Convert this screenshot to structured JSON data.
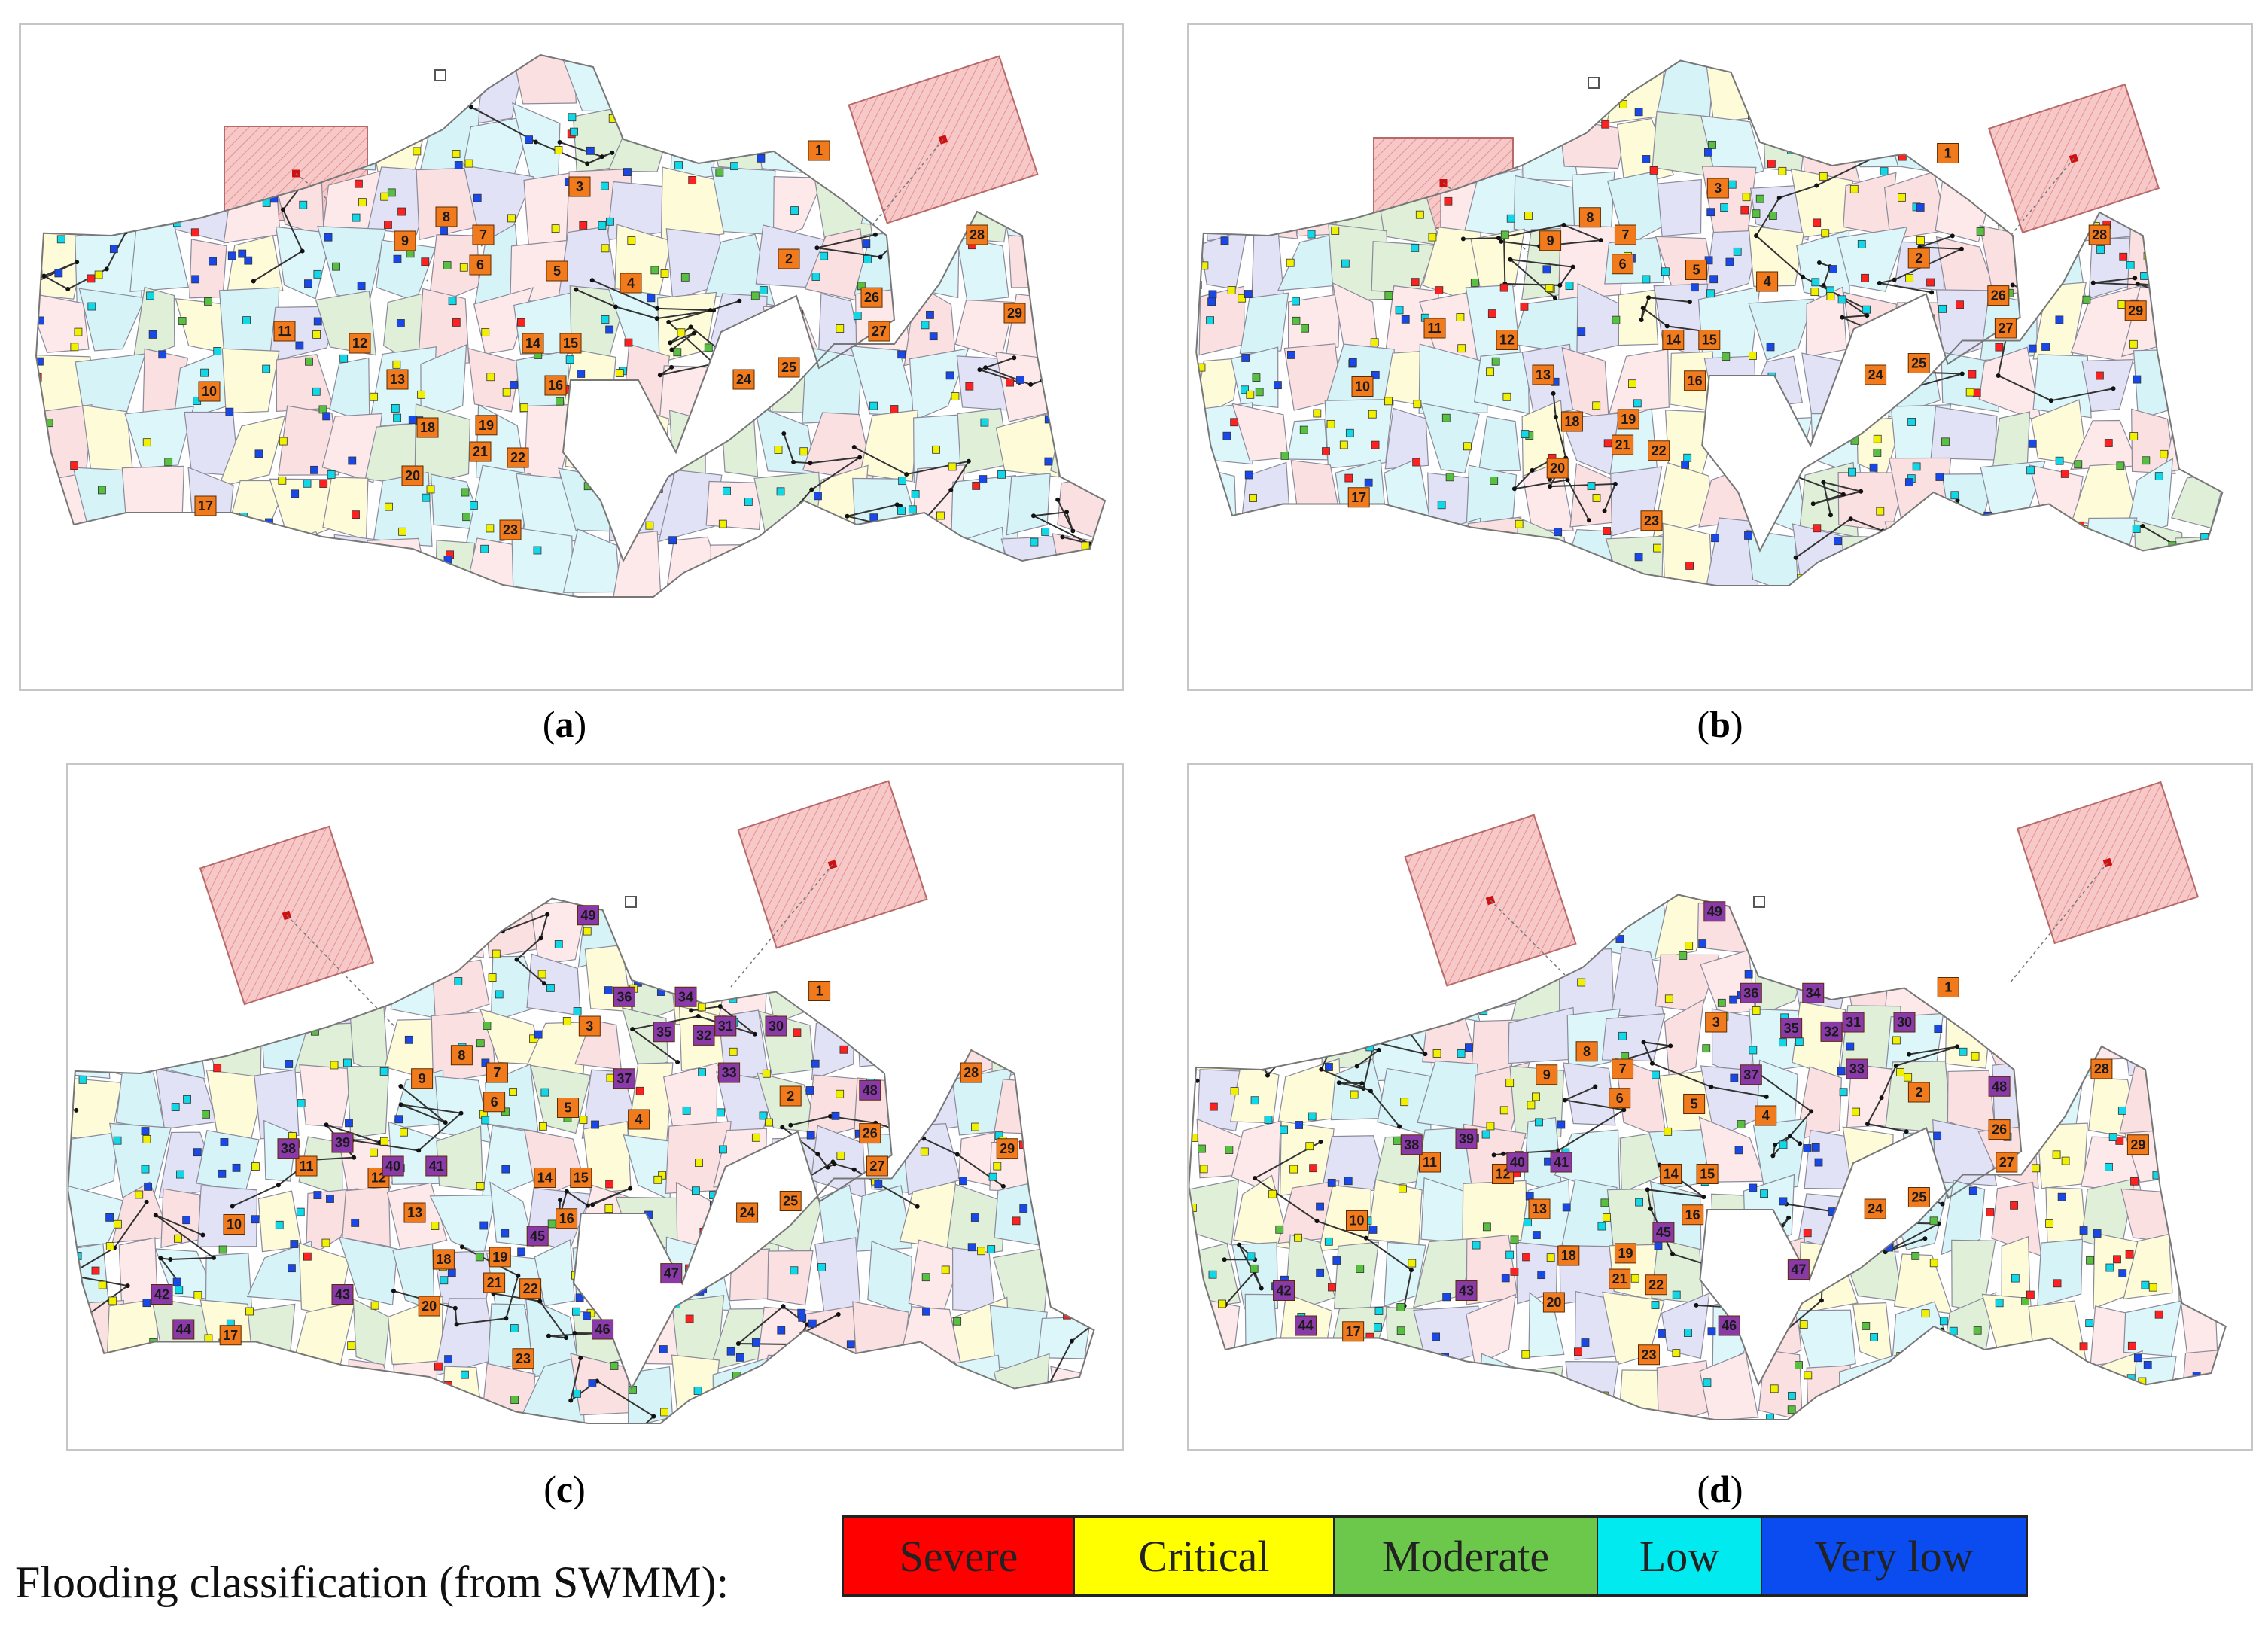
{
  "figure": {
    "panels": [
      {
        "id": "a",
        "caption_open": "(",
        "caption_letter": "a",
        "caption_close": ")",
        "junction_labels": [
          "1",
          "2",
          "3",
          "4",
          "5",
          "6",
          "7",
          "8",
          "9",
          "10",
          "11",
          "12",
          "13",
          "14",
          "15",
          "16",
          "17",
          "18",
          "19",
          "20",
          "21",
          "22",
          "23",
          "24",
          "25",
          "26",
          "27",
          "28",
          "29"
        ]
      },
      {
        "id": "b",
        "caption_open": "(",
        "caption_letter": "b",
        "caption_close": ")",
        "junction_labels": [
          "1",
          "2",
          "3",
          "4",
          "5",
          "6",
          "7",
          "8",
          "9",
          "10",
          "11",
          "12",
          "13",
          "14",
          "15",
          "16",
          "17",
          "18",
          "19",
          "20",
          "21",
          "22",
          "23",
          "24",
          "25",
          "26",
          "27",
          "28",
          "29"
        ]
      },
      {
        "id": "c",
        "caption_open": "(",
        "caption_letter": "c",
        "caption_close": ")",
        "junction_labels": [
          "1",
          "2",
          "3",
          "4",
          "5",
          "6",
          "7",
          "8",
          "9",
          "10",
          "11",
          "12",
          "13",
          "14",
          "15",
          "16",
          "17",
          "18",
          "19",
          "20",
          "21",
          "22",
          "23",
          "24",
          "25",
          "26",
          "27",
          "28",
          "29"
        ],
        "new_junction_labels": [
          "30",
          "31",
          "32",
          "33",
          "34",
          "35",
          "36",
          "37",
          "38",
          "39",
          "40",
          "41",
          "42",
          "43",
          "44",
          "45",
          "46",
          "47",
          "48",
          "49"
        ]
      },
      {
        "id": "d",
        "caption_open": "(",
        "caption_letter": "d",
        "caption_close": ")",
        "junction_labels": [
          "1",
          "2",
          "3",
          "4",
          "5",
          "6",
          "7",
          "8",
          "9",
          "10",
          "11",
          "12",
          "13",
          "14",
          "15",
          "16",
          "17",
          "18",
          "19",
          "20",
          "21",
          "22",
          "23",
          "24",
          "25",
          "26",
          "27",
          "28",
          "29"
        ],
        "new_junction_labels": [
          "30",
          "31",
          "32",
          "33",
          "34",
          "35",
          "36",
          "37",
          "38",
          "39",
          "40",
          "41",
          "42",
          "43",
          "44",
          "45",
          "46",
          "47",
          "48",
          "49"
        ]
      }
    ]
  },
  "legend": {
    "label": "Flooding classification (from SWMM):",
    "classes": [
      {
        "name": "Severe",
        "color": "#ff0000"
      },
      {
        "name": "Critical",
        "color": "#ffff00"
      },
      {
        "name": "Moderate",
        "color": "#6cc84a"
      },
      {
        "name": "Low",
        "color": "#00eaf0"
      },
      {
        "name": "Very low",
        "color": "#0a4cf0"
      }
    ]
  },
  "colors": {
    "old_label": "#f07a1c",
    "new_label": "#8a3aa8",
    "rain_area": "#f6c8c8",
    "pipe": "#333333"
  }
}
